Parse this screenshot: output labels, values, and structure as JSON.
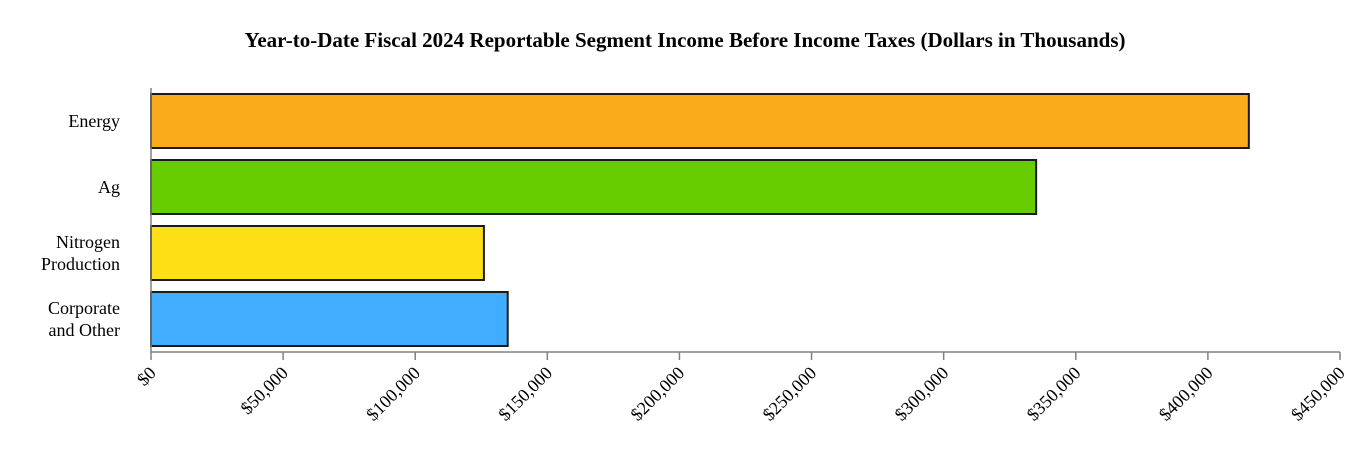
{
  "chart_data": {
    "type": "bar",
    "orientation": "horizontal",
    "title": "Year-to-Date Fiscal 2024 Reportable Segment Income Before Income Taxes (Dollars in Thousands)",
    "categories": [
      [
        "Energy"
      ],
      [
        "Ag"
      ],
      [
        "Nitrogen",
        "Production"
      ],
      [
        "Corporate",
        "and Other"
      ]
    ],
    "values": [
      415500,
      335000,
      126000,
      135000
    ],
    "colors": [
      "#F9AB1B",
      "#66CC00",
      "#FCDF14",
      "#42ADFF"
    ],
    "xlim": [
      0,
      450000
    ],
    "xticks": [
      0,
      50000,
      100000,
      150000,
      200000,
      250000,
      300000,
      350000,
      400000,
      450000
    ],
    "xtick_labels": [
      "$0",
      "$50,000",
      "$100,000",
      "$150,000",
      "$200,000",
      "$250,000",
      "$300,000",
      "$350,000",
      "$400,000",
      "$450,000"
    ],
    "xlabel": "",
    "ylabel": "",
    "grid": false,
    "legend": "none"
  }
}
